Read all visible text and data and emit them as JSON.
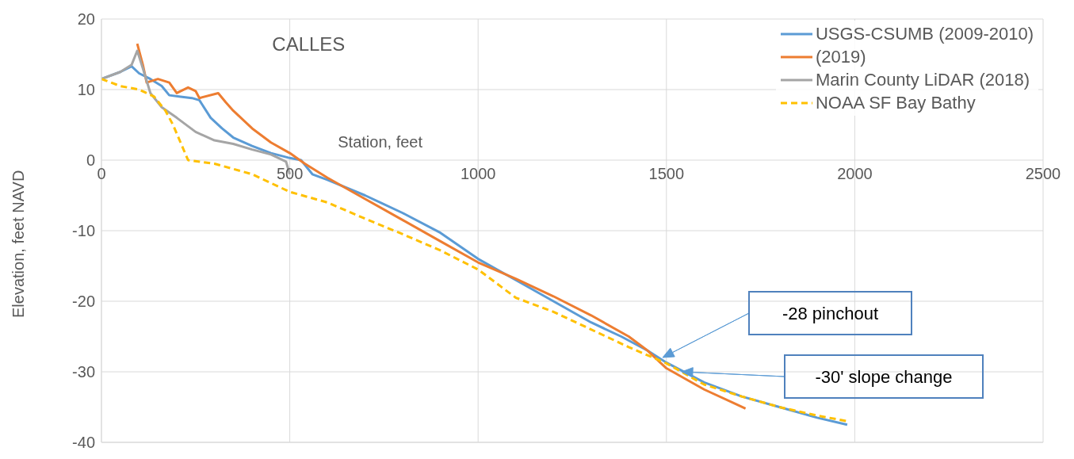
{
  "chart_data": {
    "type": "line",
    "title": "CALLES",
    "xlabel": "Station, feet",
    "ylabel": "Elevation, feet NAVD",
    "xlim": [
      0,
      2500
    ],
    "xticks": [
      0,
      500,
      1000,
      1500,
      2000,
      2500
    ],
    "ylim": [
      -40,
      20
    ],
    "yticks": [
      -40,
      -30,
      -20,
      -10,
      0,
      10,
      20
    ],
    "grid": true,
    "legend": "top right",
    "marker": "none",
    "series": [
      {
        "name": "USGS-CSUMB (2009-2010)",
        "color": "#5b9bd5",
        "line_style": "solid",
        "x": [
          0,
          50,
          80,
          100,
          130,
          160,
          180,
          210,
          240,
          260,
          290,
          320,
          350,
          400,
          450,
          500,
          530,
          560,
          600,
          700,
          800,
          900,
          1000,
          1100,
          1200,
          1300,
          1380,
          1450,
          1500,
          1600,
          1700,
          1800,
          1900,
          1980
        ],
        "values": [
          11.5,
          12.5,
          13.3,
          12.3,
          11.5,
          10.5,
          9.2,
          9,
          8.8,
          8.5,
          6,
          4.5,
          3.2,
          2,
          1,
          0.3,
          0,
          -2,
          -2.8,
          -5,
          -7.5,
          -10.3,
          -14,
          -17,
          -20,
          -23,
          -25,
          -27,
          -28.7,
          -31.5,
          -33.5,
          -35,
          -36.5,
          -37.5
        ]
      },
      {
        "name": "(2019)",
        "color": "#ed7d31",
        "line_style": "solid",
        "x": [
          95,
          110,
          120,
          150,
          180,
          200,
          230,
          250,
          260,
          310,
          330,
          350,
          400,
          450,
          500,
          540,
          600,
          700,
          800,
          900,
          1000,
          1100,
          1200,
          1300,
          1400,
          1450,
          1500,
          1600,
          1710
        ],
        "values": [
          16.5,
          13.5,
          11,
          11.5,
          11,
          9.5,
          10.3,
          9.8,
          8.8,
          9.5,
          8.2,
          7,
          4.5,
          2.5,
          1,
          -0.5,
          -2.5,
          -5.5,
          -8.5,
          -11.5,
          -14.5,
          -16.8,
          -19.3,
          -22,
          -25,
          -27,
          -29.5,
          -32.5,
          -35.2
        ]
      },
      {
        "name": "Marin County LiDAR (2018)",
        "color": "#a5a5a5",
        "line_style": "solid",
        "x": [
          0,
          50,
          80,
          95,
          110,
          130,
          160,
          200,
          250,
          300,
          350,
          400,
          450,
          490,
          500
        ],
        "values": [
          11.5,
          12.5,
          13.5,
          15.5,
          13,
          9.5,
          7.5,
          6,
          4,
          2.8,
          2.3,
          1.5,
          0.8,
          -0.2,
          -2
        ]
      },
      {
        "name": "NOAA SF Bay Bathy",
        "color": "#ffc000",
        "line_style": "dashed",
        "x": [
          0,
          50,
          100,
          140,
          170,
          190,
          230,
          300,
          400,
          500,
          600,
          700,
          800,
          900,
          1000,
          1050,
          1100,
          1200,
          1300,
          1400,
          1500,
          1600,
          1700,
          1800,
          1900,
          1980
        ],
        "values": [
          11.5,
          10.5,
          10,
          9,
          7,
          5,
          0,
          -0.5,
          -2,
          -4.5,
          -6,
          -8.3,
          -10.5,
          -12.8,
          -15.5,
          -17.5,
          -19.5,
          -21.5,
          -24,
          -26.5,
          -28.8,
          -31.8,
          -33.5,
          -35,
          -36.2,
          -37
        ]
      }
    ],
    "annotations": [
      "-28 pinchout",
      "-30' slope change"
    ]
  }
}
